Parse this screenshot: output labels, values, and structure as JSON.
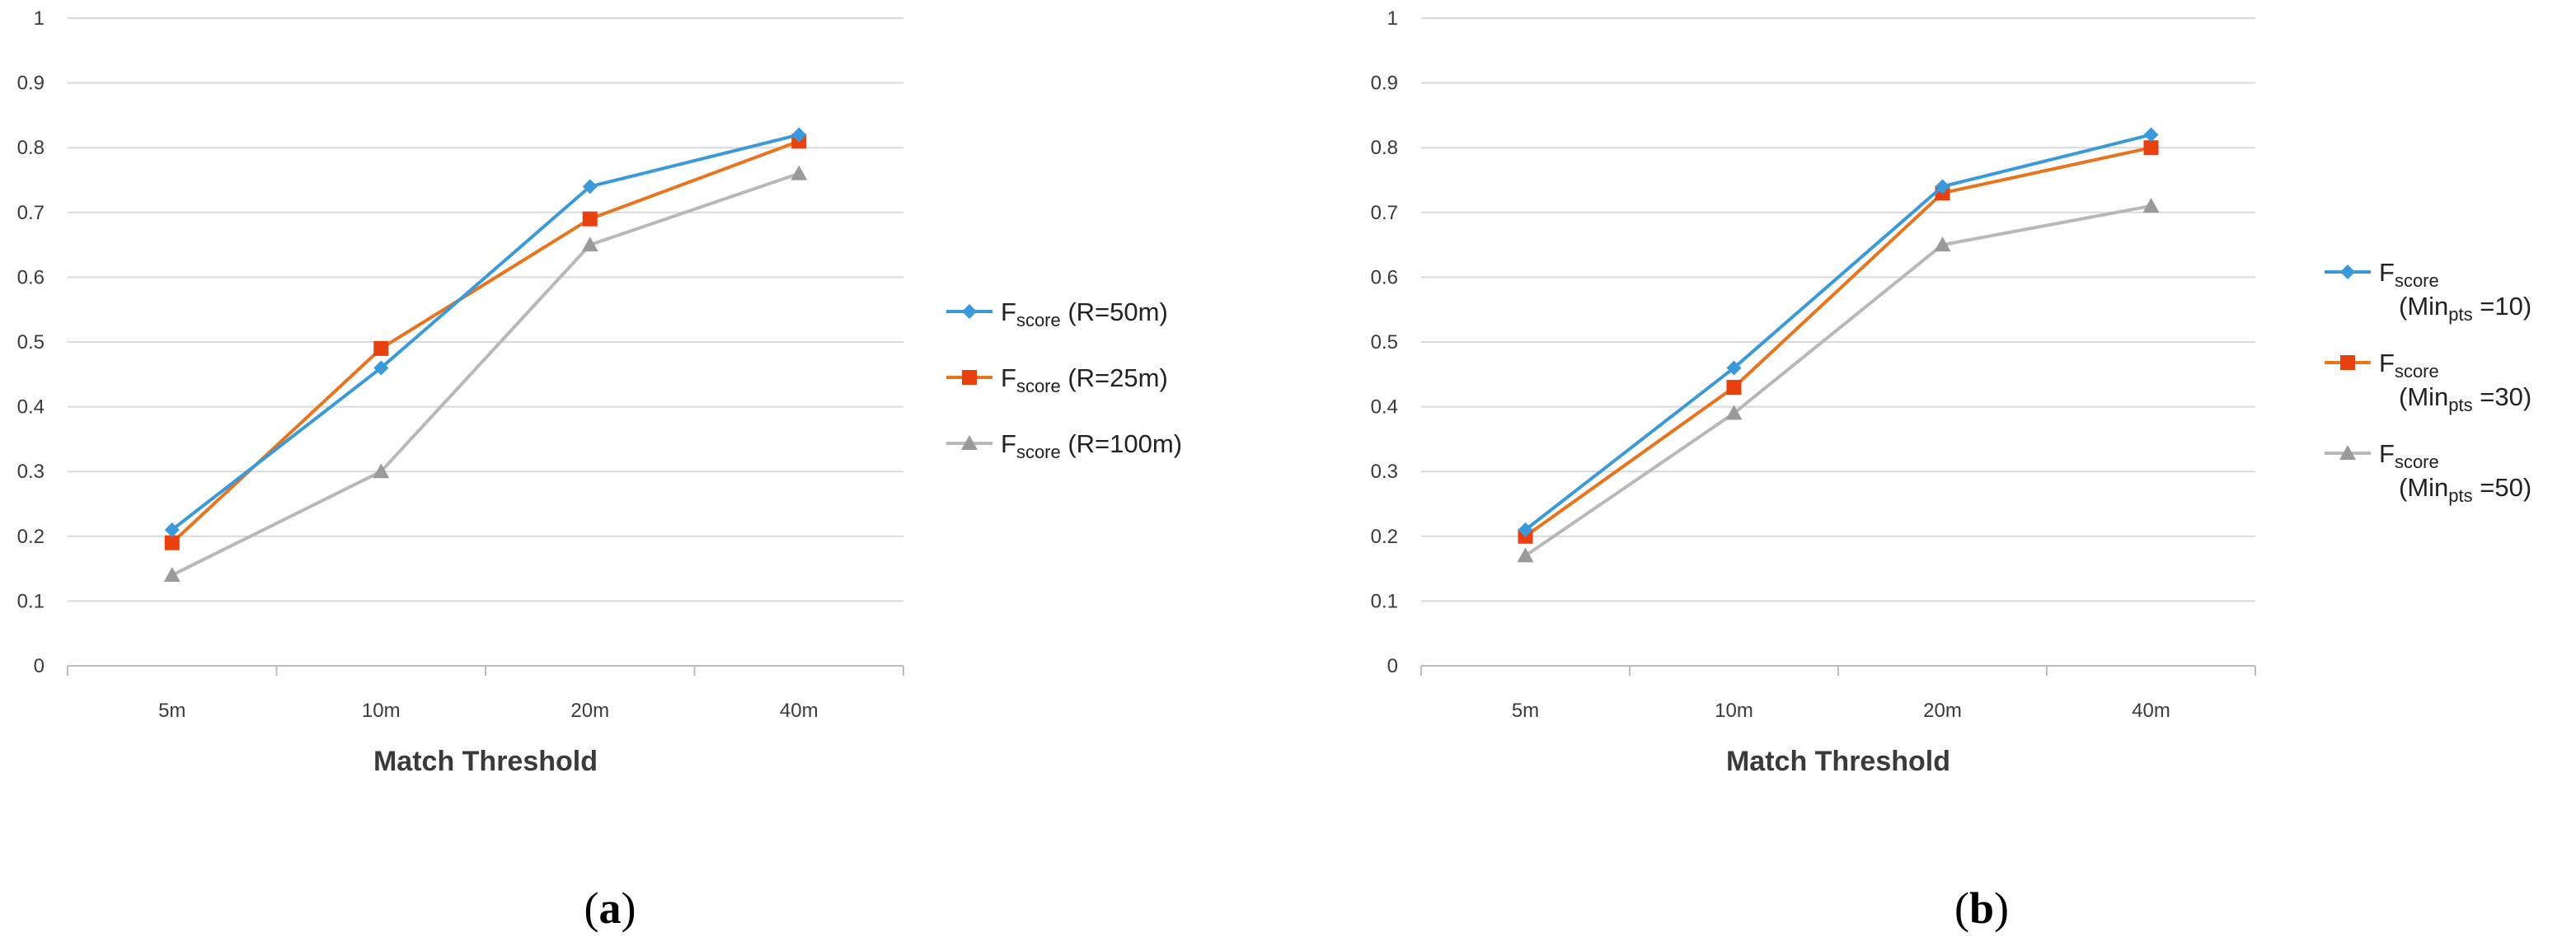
{
  "chart_data": [
    {
      "type": "line",
      "caption": "(a)",
      "caption_letter": "a",
      "categories": [
        "5m",
        "10m",
        "20m",
        "40m"
      ],
      "xlabel": "Match  Threshold",
      "ylabel": "",
      "ylim": [
        0,
        1
      ],
      "yticks": [
        "0",
        "0.1",
        "0.2",
        "0.3",
        "0.4",
        "0.5",
        "0.6",
        "0.7",
        "0.8",
        "0.9",
        "1"
      ],
      "grid": true,
      "legend_position": "right",
      "series": [
        {
          "name": "Fscore (R=50m)",
          "legend_main": "F",
          "legend_sub": "score",
          "legend_rest": " (R=50m)",
          "values": [
            0.21,
            0.46,
            0.74,
            0.82
          ],
          "color": "#3a9ad9",
          "marker": "diamond"
        },
        {
          "name": "Fscore (R=25m)",
          "legend_main": "F",
          "legend_sub": "score",
          "legend_rest": " (R=25m)",
          "values": [
            0.19,
            0.49,
            0.69,
            0.81
          ],
          "color": "#e8741e",
          "marker_color": "#e8400e",
          "marker": "square"
        },
        {
          "name": "Fscore (R=100m)",
          "legend_main": "F",
          "legend_sub": "score",
          "legend_rest": " (R=100m)",
          "values": [
            0.14,
            0.3,
            0.65,
            0.76
          ],
          "color": "#b8b8b8",
          "marker_color": "#9a9a9a",
          "marker": "triangle"
        }
      ]
    },
    {
      "type": "line",
      "caption": "(b)",
      "caption_letter": "b",
      "categories": [
        "5m",
        "10m",
        "20m",
        "40m"
      ],
      "xlabel": "Match  Threshold",
      "ylabel": "",
      "ylim": [
        0,
        1
      ],
      "yticks": [
        "0",
        "0.1",
        "0.2",
        "0.3",
        "0.4",
        "0.5",
        "0.6",
        "0.7",
        "0.8",
        "0.9",
        "1"
      ],
      "grid": true,
      "legend_position": "right",
      "series": [
        {
          "name": "Fscore (Minpts =10)",
          "legend_main": "F",
          "legend_sub": "score",
          "legend_line2_pre": "(Min",
          "legend_line2_sub": "pts",
          "legend_line2_post": " =10)",
          "values": [
            0.21,
            0.46,
            0.74,
            0.82
          ],
          "color": "#3a9ad9",
          "marker": "diamond"
        },
        {
          "name": "Fscore (Minpts =30)",
          "legend_main": "F",
          "legend_sub": "score",
          "legend_line2_pre": "(Min",
          "legend_line2_sub": "pts",
          "legend_line2_post": " =30)",
          "values": [
            0.2,
            0.43,
            0.73,
            0.8
          ],
          "color": "#e8741e",
          "marker_color": "#e8400e",
          "marker": "square"
        },
        {
          "name": "Fscore (Minpts =50)",
          "legend_main": "F",
          "legend_sub": "score",
          "legend_line2_pre": "(Min",
          "legend_line2_sub": "pts",
          "legend_line2_post": " =50)",
          "values": [
            0.17,
            0.39,
            0.65,
            0.71
          ],
          "color": "#b8b8b8",
          "marker_color": "#9a9a9a",
          "marker": "triangle"
        }
      ]
    }
  ]
}
